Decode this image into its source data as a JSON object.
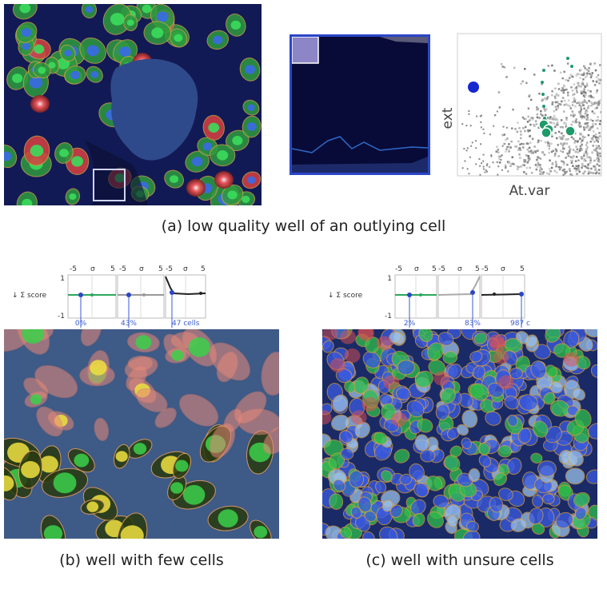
{
  "panel_a": {
    "caption": "(a) low quality well of an outlying cell",
    "scatter": {
      "xlabel": "At.var",
      "ylabel": "ext"
    }
  },
  "panel_b": {
    "caption": "(b) well with few cells",
    "score_label": "↓ Σ score",
    "axis_ticks": [
      "-5",
      "σ",
      "5"
    ],
    "y_ticks": [
      "1",
      "-1"
    ],
    "bottom_labels": [
      "0%",
      "43%",
      "47 cells"
    ]
  },
  "panel_c": {
    "caption": "(c) well with unsure cells",
    "score_label": "↓ Σ score",
    "axis_ticks": [
      "-5",
      "σ",
      "5"
    ],
    "y_ticks": [
      "1",
      "-1"
    ],
    "bottom_labels": [
      "2%",
      "83%",
      "987 c"
    ]
  },
  "colors": {
    "cell_green": "#2fd14a",
    "cell_red": "#e24a4a",
    "nucleus_blue": "#3a5be0",
    "highlight_blue": "#2b46c8",
    "teal_points": "#1f9a6a"
  }
}
